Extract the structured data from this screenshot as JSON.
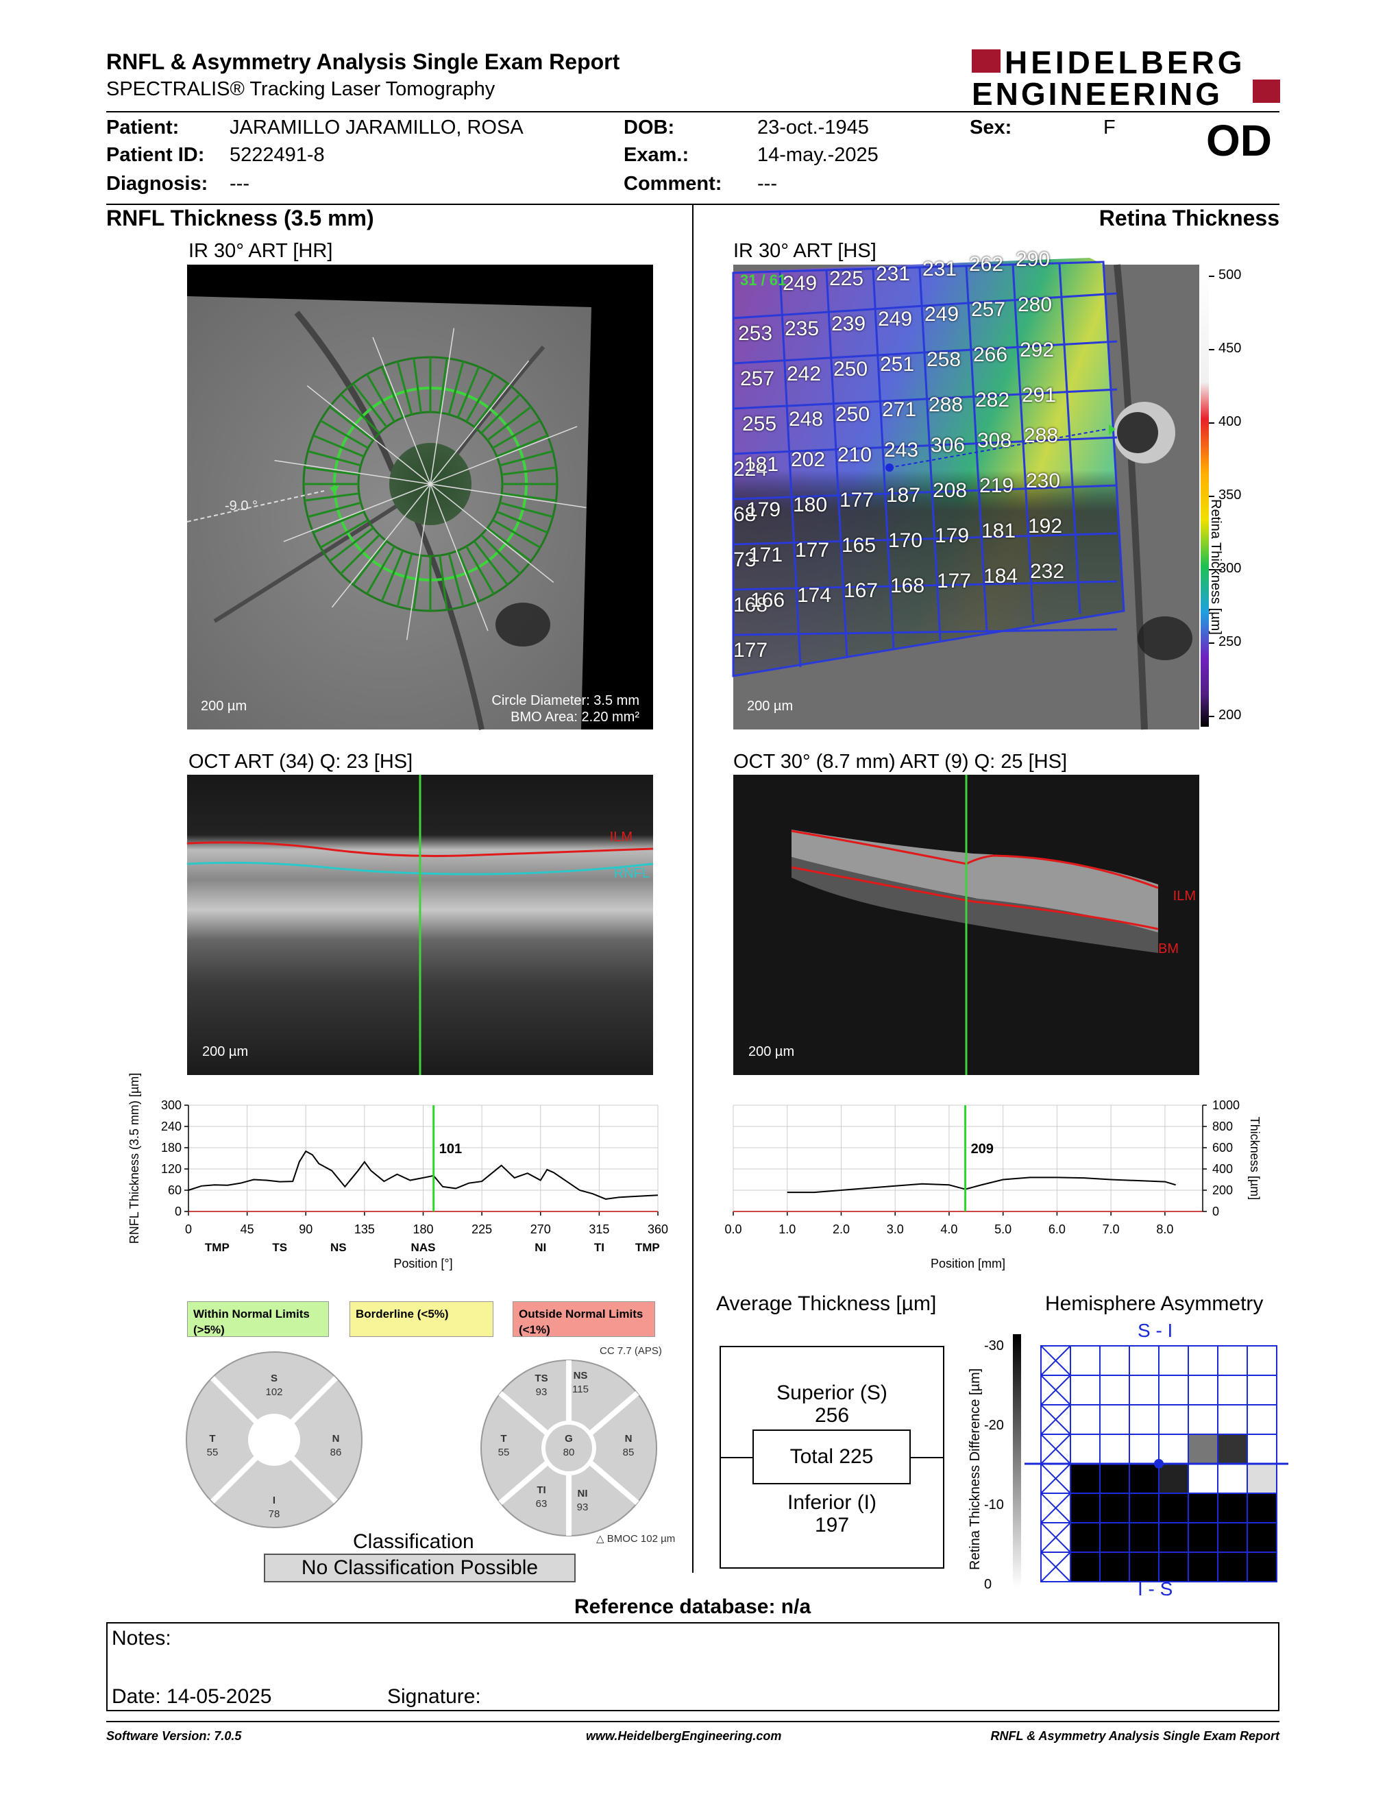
{
  "header": {
    "title": "RNFL & Asymmetry Analysis Single Exam Report",
    "subtitle": "SPECTRALIS® Tracking Laser Tomography",
    "logo_line1": "HEIDELBERG",
    "logo_line2": "ENGINEERING"
  },
  "patient": {
    "patient_label": "Patient:",
    "patient_value": "JARAMILLO JARAMILLO, ROSA",
    "id_label": "Patient ID:",
    "id_value": "5222491-8",
    "diagnosis_label": "Diagnosis:",
    "diagnosis_value": "---",
    "dob_label": "DOB:",
    "dob_value": "23-oct.-1945",
    "exam_label": "Exam.:",
    "exam_value": "14-may.-2025",
    "comment_label": "Comment:",
    "comment_value": "---",
    "sex_label": "Sex:",
    "sex_value": "F",
    "eye": "OD"
  },
  "left": {
    "section_title": "RNFL Thickness (3.5 mm)",
    "ir_title": "IR 30° ART [HR]",
    "angle_label": "-9.0 °",
    "scale": "200 µm",
    "circle_diameter": "Circle Diameter: 3.5 mm",
    "bmo_area": "BMO Area: 2.20 mm²",
    "oct_title": "OCT ART (34) Q: 23 [HS]",
    "oct_scale": "200 µm",
    "ilm_label": "ILM",
    "rnfl_label": "RNFL"
  },
  "right": {
    "section_title": "Retina Thickness",
    "ir_title": "IR 30° ART [HS]",
    "grid_count": "31 / 61",
    "scale": "200 µm",
    "colorbar_ticks": [
      "500",
      "450",
      "400",
      "350",
      "300",
      "250",
      "200"
    ],
    "colorbar_label": "Retina Thickness [µm]",
    "oct_title": "OCT 30° (8.7 mm) ART (9) Q: 25 [HS]",
    "oct_scale": "200 µm",
    "ilm_label": "ILM",
    "bm_label": "BM"
  },
  "grid_values": [
    [
      "",
      "249",
      "225",
      "231",
      "231",
      "262",
      "290"
    ],
    [
      "253",
      "235",
      "239",
      "249",
      "249",
      "257",
      "280"
    ],
    [
      "257",
      "242",
      "250",
      "251",
      "258",
      "266",
      "292"
    ],
    [
      "255",
      "248",
      "250",
      "271",
      "288",
      "282",
      "291"
    ],
    [
      "224",
      "181",
      "202",
      "210",
      "243",
      "306",
      "308",
      "288"
    ],
    [
      "68",
      "179",
      "180",
      "177",
      "187",
      "208",
      "219",
      "230"
    ],
    [
      "73",
      "171",
      "177",
      "165",
      "170",
      "179",
      "181",
      "192"
    ],
    [
      "168",
      "166",
      "174",
      "167",
      "168",
      "177",
      "184",
      "232"
    ],
    [
      "177"
    ]
  ],
  "rnfl_chart": {
    "type": "line",
    "ylabel": "RNFL Thickness (3.5 mm) [µm]",
    "xlabel": "Position [°]",
    "ylim": [
      0,
      300
    ],
    "yticks": [
      "300",
      "240",
      "180",
      "120",
      "60",
      "0"
    ],
    "xticks": [
      "0",
      "45",
      "90",
      "135",
      "180",
      "225",
      "270",
      "315",
      "360"
    ],
    "sector_labels": [
      "TMP",
      "TS",
      "NS",
      "NAS",
      "NI",
      "TI",
      "TMP"
    ],
    "cursor_value": "101",
    "cursor_x": 188,
    "series": [
      {
        "x": [
          0,
          10,
          20,
          30,
          40,
          50,
          60,
          70,
          80,
          85,
          90,
          95,
          100,
          110,
          120,
          130,
          135,
          140,
          150,
          160,
          170,
          180,
          188,
          195,
          205,
          215,
          225,
          235,
          240,
          250,
          260,
          270,
          275,
          280,
          290,
          300,
          310,
          320,
          330,
          340,
          350,
          360
        ],
        "y": [
          60,
          72,
          75,
          74,
          80,
          90,
          88,
          84,
          85,
          140,
          170,
          160,
          135,
          115,
          70,
          115,
          140,
          115,
          85,
          105,
          88,
          95,
          101,
          70,
          65,
          80,
          85,
          115,
          130,
          95,
          108,
          88,
          118,
          110,
          85,
          60,
          50,
          35,
          40,
          42,
          44,
          46
        ]
      }
    ]
  },
  "retina_chart": {
    "type": "line",
    "ylabel": "Thickness [µm]",
    "xlabel": "Position [mm]",
    "ylim": [
      0,
      1000
    ],
    "yticks": [
      "1000",
      "800",
      "600",
      "400",
      "200",
      "0"
    ],
    "xticks": [
      "0.0",
      "1.0",
      "2.0",
      "3.0",
      "4.0",
      "5.0",
      "6.0",
      "7.0",
      "8.0"
    ],
    "cursor_value": "209",
    "cursor_x": 4.3,
    "series": [
      {
        "x": [
          1.0,
          1.5,
          2.0,
          2.5,
          3.0,
          3.5,
          4.0,
          4.3,
          4.6,
          5.0,
          5.5,
          6.0,
          6.5,
          7.0,
          7.5,
          8.0,
          8.2
        ],
        "y": [
          180,
          180,
          200,
          220,
          240,
          260,
          250,
          209,
          250,
          300,
          320,
          320,
          315,
          300,
          290,
          280,
          250
        ]
      }
    ]
  },
  "legend": {
    "within": "Within Normal Limits (>5%)",
    "borderline": "Borderline (<5%)",
    "outside": "Outside Normal Limits (<1%)"
  },
  "pie4": {
    "S": "102",
    "T": "55",
    "N": "86",
    "I": "78",
    "S_label": "S",
    "T_label": "T",
    "N_label": "N",
    "I_label": "I"
  },
  "pie6": {
    "cc": "CC 7.7 (APS)",
    "TS_label": "TS",
    "TS": "93",
    "NS_label": "NS",
    "NS": "115",
    "T_label": "T",
    "T": "55",
    "G_label": "G",
    "G": "80",
    "N_label": "N",
    "N": "85",
    "TI_label": "TI",
    "TI": "63",
    "NI_label": "NI",
    "NI": "93",
    "bmo": "BMOC 102 µm"
  },
  "classification": {
    "title": "Classification",
    "value": "No Classification Possible"
  },
  "avg": {
    "title": "Average Thickness [µm]",
    "superior_label": "Superior (S)",
    "superior": "256",
    "total": "Total 225",
    "inferior_label": "Inferior (I)",
    "inferior": "197"
  },
  "asym": {
    "title": "Hemisphere Asymmetry",
    "top": "S - I",
    "bottom": "I - S",
    "ylabel": "Retina Thickness Difference [µm]",
    "ticks": [
      "-30",
      "-20",
      "-10",
      "0"
    ]
  },
  "reference": "Reference database: n/a",
  "notes": {
    "label": "Notes:",
    "date": "Date: 14-05-2025",
    "signature": "Signature:"
  },
  "footer": {
    "version": "Software Version: 7.0.5",
    "url": "www.HeidelbergEngineering.com",
    "report": "RNFL & Asymmetry Analysis Single Exam Report"
  }
}
